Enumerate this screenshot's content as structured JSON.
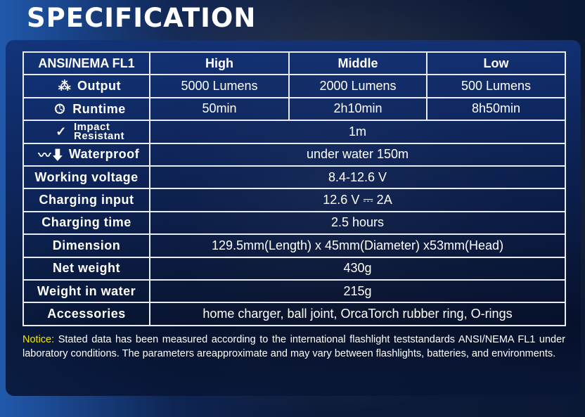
{
  "title": "SPECIFICATION",
  "table": {
    "header": [
      "ANSI/NEMA FL1",
      "High",
      "Middle",
      "Low"
    ],
    "output": {
      "label": "Output",
      "icon": "light-burst-icon",
      "values": [
        "5000 Lumens",
        "2000 Lumens",
        "500 Lumens"
      ]
    },
    "runtime": {
      "label": "Runtime",
      "icon": "clock-icon",
      "values": [
        "50min",
        "2h10min",
        "8h50min"
      ]
    },
    "impact": {
      "label_line1": "Impact",
      "label_line2": "Resistant",
      "icon": "check-impact-icon",
      "value": "1m"
    },
    "waterproof": {
      "label": "Waterproof",
      "icon": "water-arrow-icon",
      "value": "under water 150m"
    },
    "rows": [
      {
        "label": "Working voltage",
        "value": "8.4-12.6 V"
      },
      {
        "label": "Charging input",
        "value": "12.6 V ⎓ 2A"
      },
      {
        "label": "Charging time",
        "value": "2.5 hours"
      },
      {
        "label": "Dimension",
        "value": "129.5mm(Length) x 45mm(Diameter) x53mm(Head)"
      },
      {
        "label": "Net weight",
        "value": "430g"
      },
      {
        "label": "Weight in water",
        "value": "215g"
      },
      {
        "label": "Accessories",
        "value": "home charger, ball joint, OrcaTorch rubber ring, O-rings"
      }
    ]
  },
  "notice": {
    "label": "Notice:",
    "text": " Stated data has been measured according to the international flashlight teststandards ANSI/NEMA FL1 under laboratory conditions. The parameters areapproximate and may vary between flashlights, batteries, and environments."
  },
  "colors": {
    "notice_label": "#f2e600",
    "border": "#e8ecf4"
  }
}
